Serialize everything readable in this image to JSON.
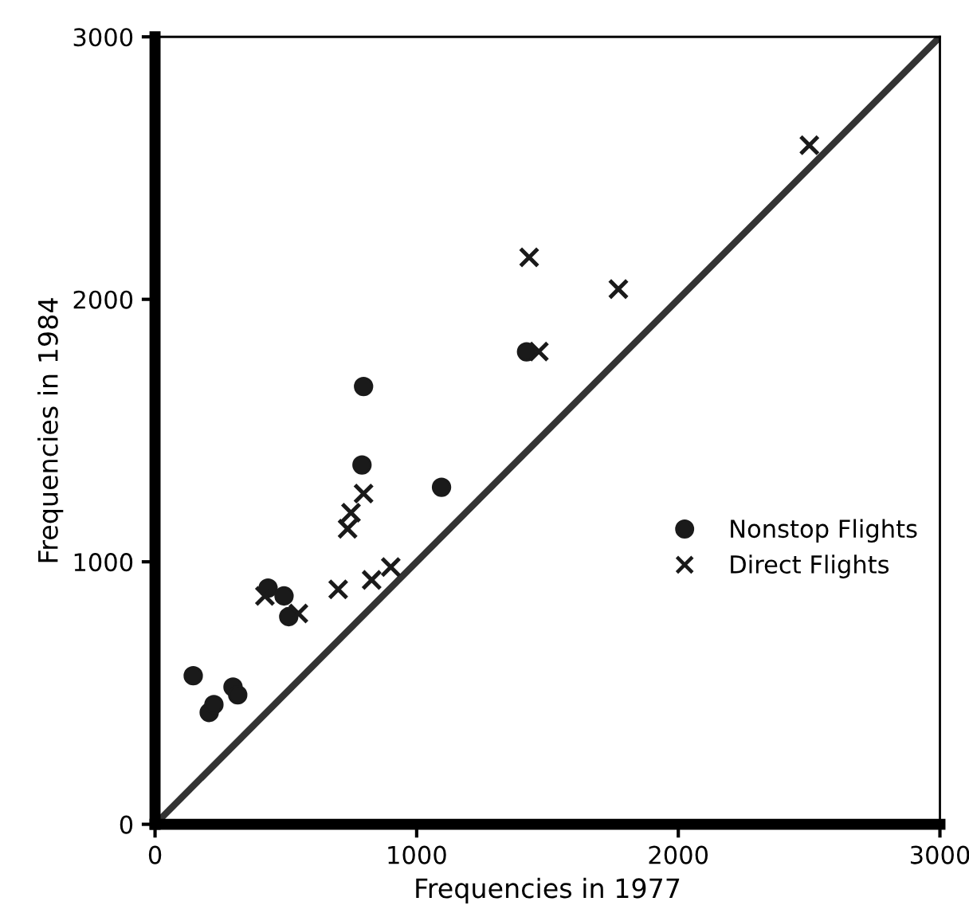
{
  "chart_data": {
    "type": "scatter",
    "xlabel": "Frequencies in 1977",
    "ylabel": "Frequencies in 1984",
    "xlim": [
      0,
      3000
    ],
    "ylim": [
      0,
      3000
    ],
    "xticks": [
      0,
      1000,
      2000,
      3000
    ],
    "yticks": [
      0,
      1000,
      2000,
      3000
    ],
    "grid": false,
    "legend": "right",
    "series": [
      {
        "name": "Nonstop Flights",
        "color": "#1a1a1a",
        "marker": "circle",
        "x": [
          146,
          207,
          225,
          298,
          316,
          432,
          493,
          511,
          791,
          797,
          1095,
          1420
        ],
        "values": [
          566,
          426,
          456,
          523,
          493,
          900,
          870,
          791,
          1369,
          1668,
          1284,
          1800
        ]
      },
      {
        "name": "Direct Flights",
        "color": "#1a1a1a",
        "marker": "cross",
        "x": [
          420,
          548,
          700,
          736,
          749,
          797,
          828,
          901,
          1467,
          1430,
          1771,
          2501
        ],
        "values": [
          870,
          803,
          895,
          1126,
          1187,
          1260,
          931,
          980,
          1801,
          2160,
          2039,
          2587
        ]
      },
      {
        "type": "line",
        "color": "#333333",
        "line_style": "solid",
        "x": [
          0,
          3000
        ],
        "values": [
          0,
          3000
        ]
      }
    ]
  }
}
